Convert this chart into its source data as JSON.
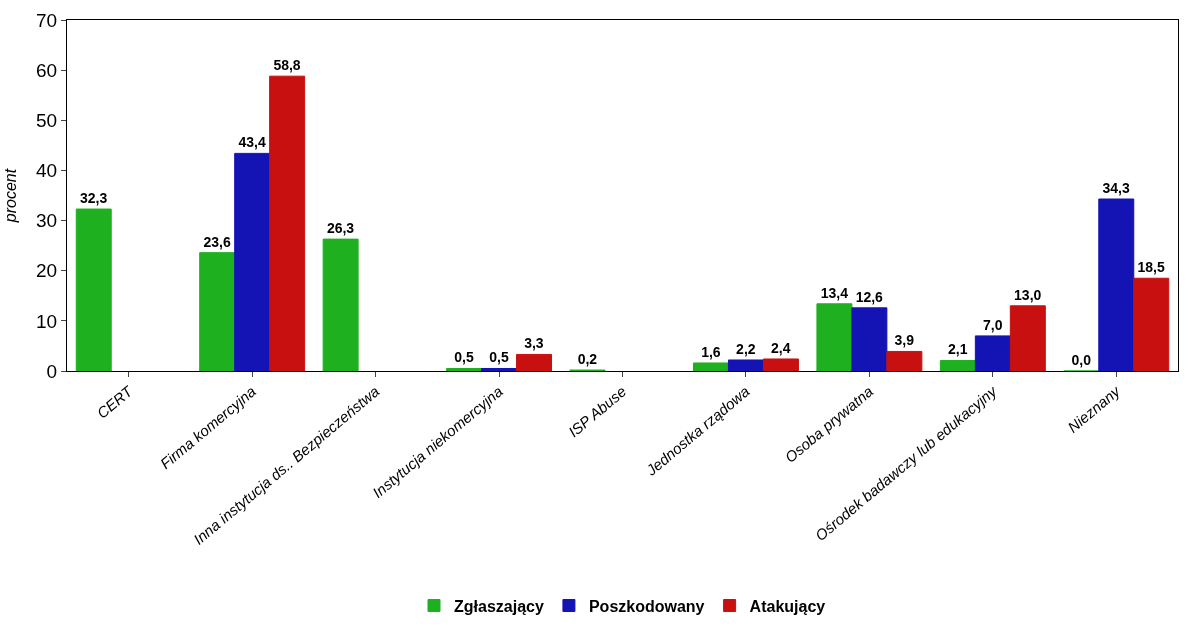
{
  "chart_data": {
    "type": "bar",
    "ylabel": "procent",
    "categories": [
      "CERT",
      "Firma komercyjna",
      "Inna instytucja ds.. Bezpieczeństwa",
      "Instytucja niekomercyjna",
      "ISP Abuse",
      "Jednostka rządowa",
      "Osoba prywatna",
      "Ośrodek badawczy lub edukacyjny",
      "Nieznany"
    ],
    "series": [
      {
        "name": "Zgłaszający",
        "color": "#1fb01f",
        "values": [
          32.3,
          23.6,
          26.3,
          0.5,
          0.2,
          1.6,
          13.4,
          2.1,
          0.0
        ],
        "value_labels": [
          "32,3",
          "23,6",
          "26,3",
          "0,5",
          "0,2",
          "1,6",
          "13,4",
          "2,1",
          "0,0"
        ]
      },
      {
        "name": "Poszkodowany",
        "color": "#1414b4",
        "values": [
          null,
          43.4,
          null,
          0.5,
          null,
          2.2,
          12.6,
          7.0,
          34.3
        ],
        "value_labels": [
          null,
          "43,4",
          null,
          "0,5",
          null,
          "2,2",
          "12,6",
          "7,0",
          "34,3"
        ]
      },
      {
        "name": "Atakujący",
        "color": "#c81010",
        "values": [
          null,
          58.8,
          null,
          3.3,
          null,
          2.4,
          3.9,
          13.0,
          18.5
        ],
        "value_labels": [
          null,
          "58,8",
          null,
          "3,3",
          null,
          "2,4",
          "3,9",
          "13,0",
          "18,5"
        ]
      }
    ],
    "ylim": [
      0,
      70
    ],
    "yticks": [
      0,
      10,
      20,
      30,
      40,
      50,
      60,
      70
    ],
    "grid": false,
    "legend": "bottom"
  }
}
